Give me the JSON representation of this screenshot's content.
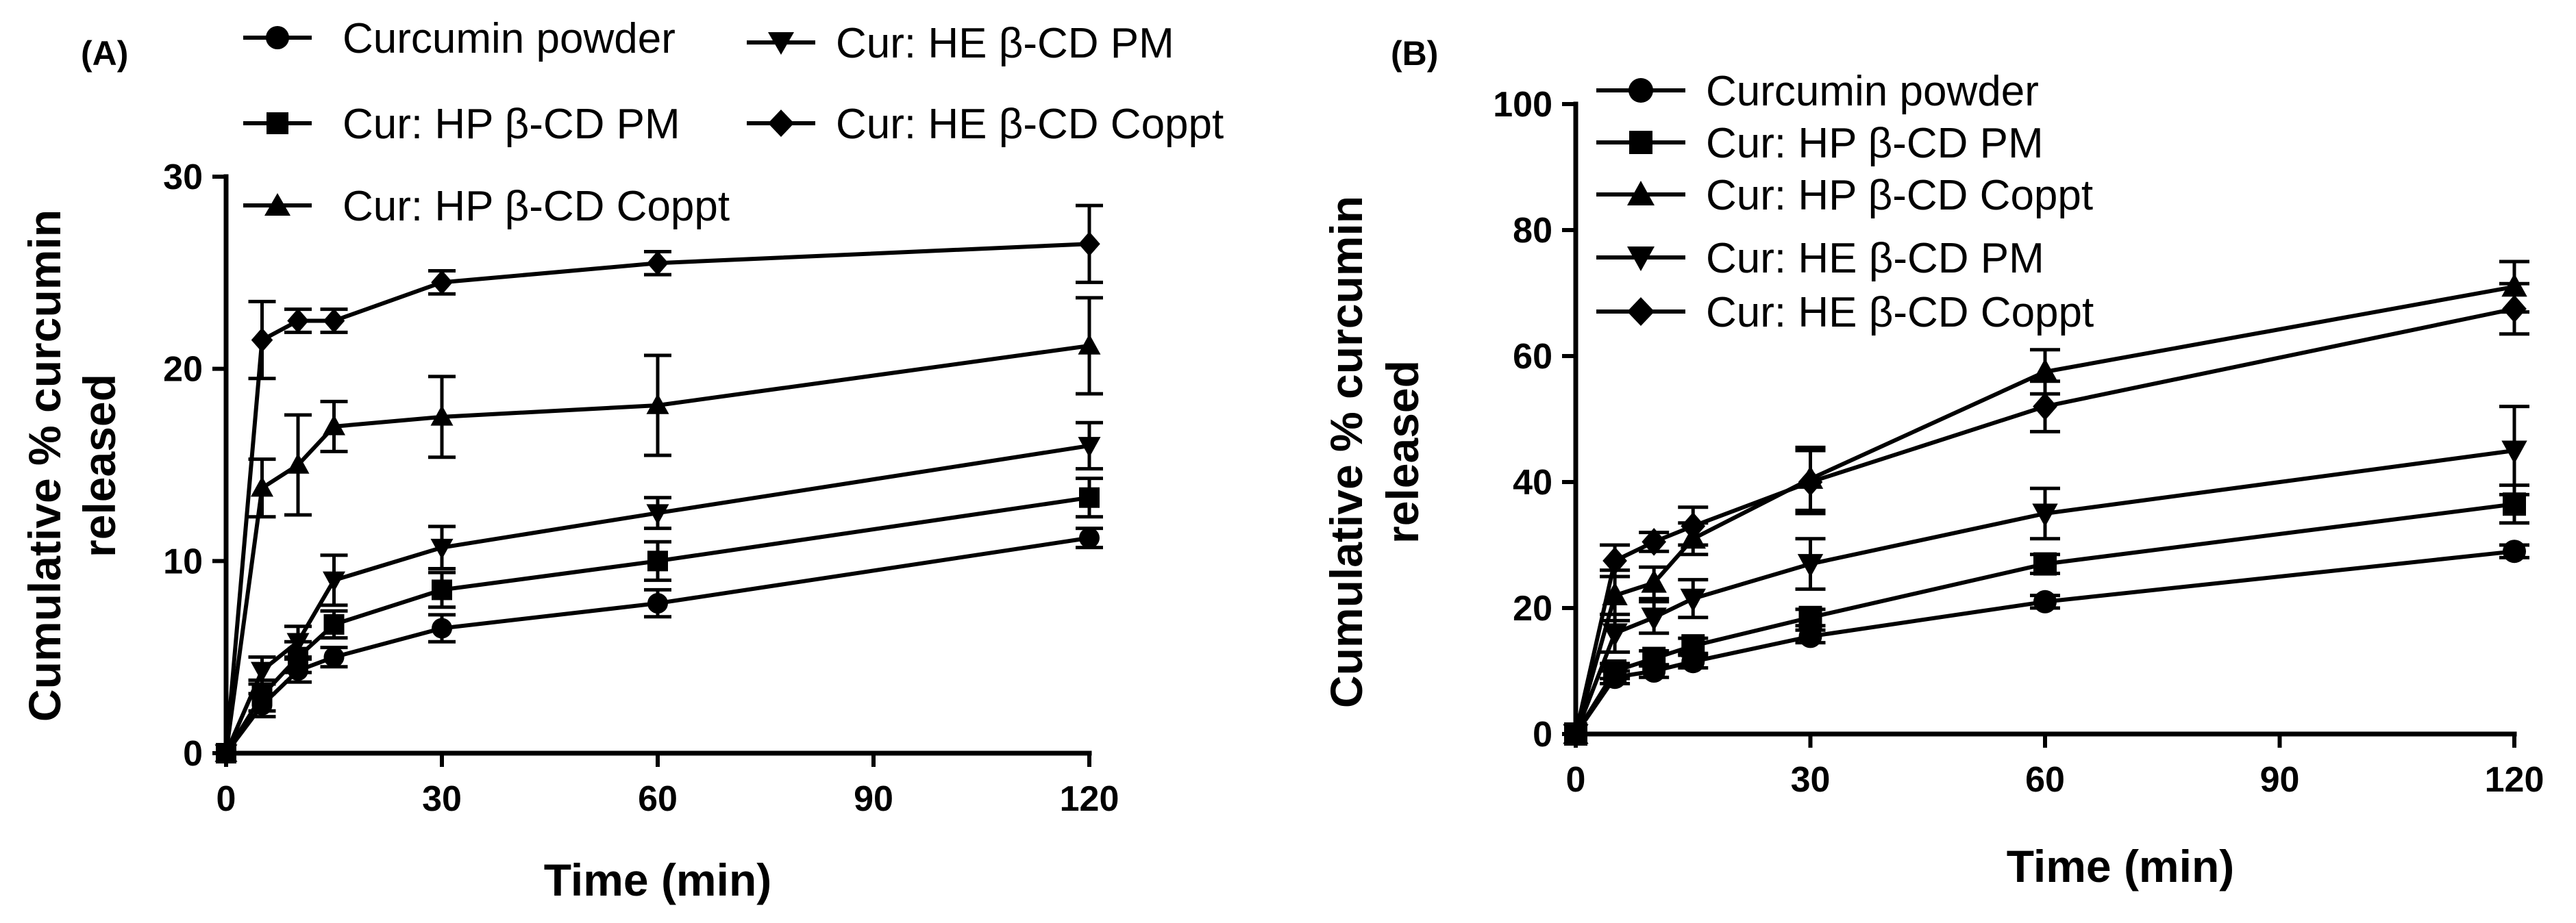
{
  "chart_data": [
    {
      "type": "line",
      "panel_label": "(A)",
      "xlabel": "Time (min)",
      "ylabel_lines": [
        "Cumulative % curcumin",
        "released"
      ],
      "xlim": [
        0,
        120
      ],
      "ylim": [
        0,
        30
      ],
      "xticks": [
        0,
        30,
        60,
        90,
        120
      ],
      "xtick_labels": [
        "0",
        "30",
        "60",
        "90",
        "120"
      ],
      "yticks": [
        0,
        10,
        20,
        30
      ],
      "ytick_labels": [
        "0",
        "10",
        "20",
        "30"
      ],
      "x": [
        0,
        5,
        10,
        15,
        30,
        60,
        120
      ],
      "legend_placement": "top, three columns-style above plot",
      "series": [
        {
          "name": "Curcumin powder",
          "marker": "circle",
          "values": [
            0,
            2.5,
            4.3,
            5.0,
            6.5,
            7.8,
            11.2
          ],
          "errors": [
            0,
            0.6,
            0.6,
            0.5,
            0.7,
            0.7,
            0.5
          ]
        },
        {
          "name": "Cur: HP β-CD PM",
          "marker": "square",
          "values": [
            0,
            3.0,
            5.0,
            6.7,
            8.5,
            10.0,
            13.3
          ],
          "errors": [
            0,
            0.8,
            0.8,
            0.7,
            0.9,
            1.0,
            1.0
          ]
        },
        {
          "name": "Cur: HP β-CD Coppt",
          "marker": "triangle-up",
          "values": [
            0,
            13.8,
            15.0,
            17.0,
            17.5,
            18.1,
            21.2
          ],
          "errors": [
            0,
            1.5,
            2.6,
            1.3,
            2.1,
            2.6,
            2.5
          ]
        },
        {
          "name": "Cur: HE β-CD PM",
          "marker": "triangle-down",
          "values": [
            0,
            4.3,
            5.8,
            9.0,
            10.7,
            12.5,
            16.0
          ],
          "errors": [
            0,
            0.7,
            0.8,
            1.3,
            1.1,
            0.8,
            1.2
          ]
        },
        {
          "name": "Cur: HE β-CD Coppt",
          "marker": "diamond",
          "values": [
            0,
            21.5,
            22.5,
            22.5,
            24.5,
            25.5,
            26.5
          ],
          "errors": [
            0,
            2.0,
            0.6,
            0.6,
            0.6,
            0.6,
            2.0
          ]
        }
      ]
    },
    {
      "type": "line",
      "panel_label": "(B)",
      "xlabel": "Time (min)",
      "ylabel_lines": [
        "Cumulative % curcumin",
        "released"
      ],
      "xlim": [
        0,
        120
      ],
      "ylim": [
        0,
        100
      ],
      "xticks": [
        0,
        30,
        60,
        90,
        120
      ],
      "xtick_labels": [
        "0",
        "30",
        "60",
        "90",
        "120"
      ],
      "yticks": [
        0,
        20,
        40,
        60,
        80,
        100
      ],
      "ytick_labels": [
        "0",
        "20",
        "40",
        "60",
        "80",
        "100"
      ],
      "x": [
        0,
        5,
        10,
        15,
        30,
        60,
        120
      ],
      "legend_placement": "top-left, single column",
      "series": [
        {
          "name": "Curcumin powder",
          "marker": "circle",
          "values": [
            0,
            9.0,
            10.0,
            11.5,
            15.5,
            21.0,
            29.0
          ],
          "errors": [
            0,
            1.0,
            1.0,
            1.0,
            1.0,
            1.0,
            1.0
          ]
        },
        {
          "name": "Cur: HP β-CD PM",
          "marker": "square",
          "values": [
            0,
            10.0,
            12.0,
            14.0,
            18.5,
            27.0,
            36.5
          ],
          "errors": [
            0,
            1.2,
            1.2,
            1.2,
            1.3,
            1.5,
            3.0
          ]
        },
        {
          "name": "Cur: HP β-CD Coppt",
          "marker": "triangle-up",
          "values": [
            0,
            22.0,
            24.0,
            31.0,
            40.5,
            57.5,
            71.0
          ],
          "errors": [
            0,
            4.0,
            2.5,
            2.5,
            5.0,
            3.5,
            4.0
          ]
        },
        {
          "name": "Cur: HE β-CD PM",
          "marker": "triangle-down",
          "values": [
            0,
            16.0,
            18.5,
            21.5,
            27.0,
            35.0,
            45.0
          ],
          "errors": [
            0,
            3.0,
            2.5,
            3.0,
            4.0,
            4.0,
            7.0
          ]
        },
        {
          "name": "Cur: HE β-CD Coppt",
          "marker": "diamond",
          "values": [
            0,
            27.5,
            30.5,
            33.0,
            40.0,
            52.0,
            67.5
          ],
          "errors": [
            0,
            2.5,
            1.5,
            3.0,
            5.0,
            4.0,
            4.0
          ]
        }
      ]
    }
  ]
}
